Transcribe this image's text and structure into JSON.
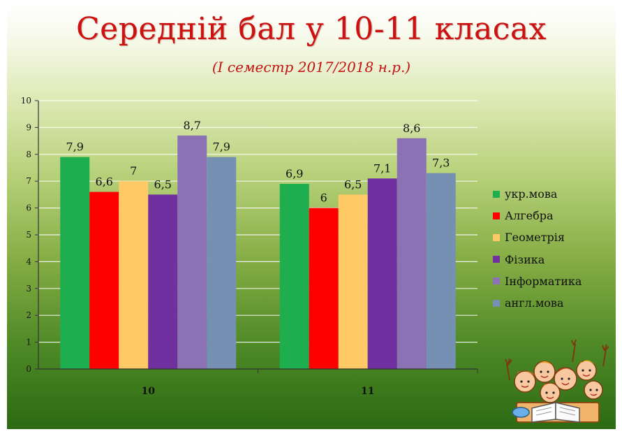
{
  "title": "Середній бал у 10-11 класах",
  "subtitle": "(І семестр 2017/2018 н.р.)",
  "chart_data": {
    "type": "bar",
    "categories": [
      "10",
      "11"
    ],
    "series": [
      {
        "name": "укр.мова",
        "values": [
          7.9,
          6.9
        ],
        "labels": [
          "7,9",
          "6,9"
        ],
        "color": "#1fae4f"
      },
      {
        "name": "Алгебра",
        "values": [
          6.6,
          6.0
        ],
        "labels": [
          "6,6",
          "6"
        ],
        "color": "#ff0000"
      },
      {
        "name": "Геометрія",
        "values": [
          7.0,
          6.5
        ],
        "labels": [
          "7",
          "6,5"
        ],
        "color": "#ffc966"
      },
      {
        "name": "Фізика",
        "values": [
          6.5,
          7.1
        ],
        "labels": [
          "6,5",
          "7,1"
        ],
        "color": "#7030a0"
      },
      {
        "name": "Інформатика",
        "values": [
          8.7,
          8.6
        ],
        "labels": [
          "8,7",
          "8,6"
        ],
        "color": "#8b72b4"
      },
      {
        "name": "англ.мова",
        "values": [
          7.9,
          7.3
        ],
        "labels": [
          "7,9",
          "7,3"
        ],
        "color": "#7690b4"
      }
    ],
    "ylim": [
      0,
      10
    ],
    "yticks": [
      0,
      1,
      2,
      3,
      4,
      5,
      6,
      7,
      8,
      9,
      10
    ],
    "grid": true,
    "legend": "right"
  },
  "icons": {
    "illustration": "children-cartoon-icon"
  }
}
